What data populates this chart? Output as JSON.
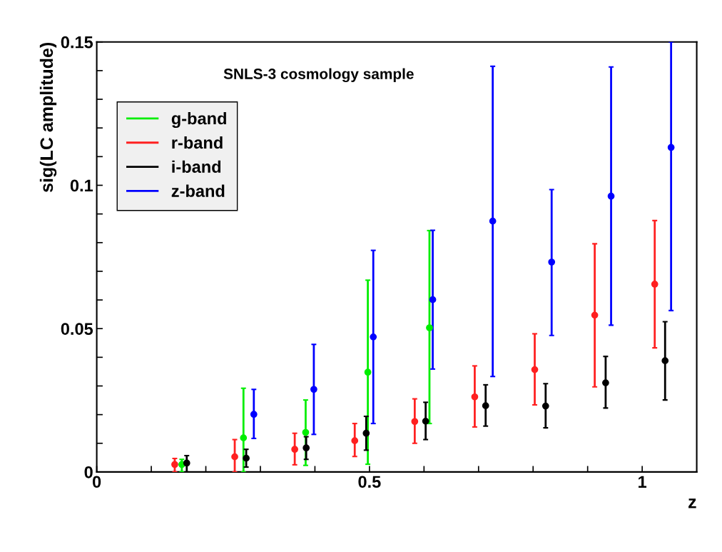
{
  "chart_data": {
    "type": "scatter",
    "title": "SNLS-3 cosmology sample",
    "xlabel": "z",
    "ylabel": "sig(LC amplitude)",
    "xlim": [
      0,
      1.1
    ],
    "ylim": [
      0,
      0.15
    ],
    "xticks": [
      0,
      {
        "value": 0.1,
        "label": null
      },
      {
        "value": 0.2,
        "label": null
      },
      {
        "value": 0.3,
        "label": null
      },
      {
        "value": 0.4,
        "label": null
      },
      0.5,
      {
        "value": 0.6,
        "label": null
      },
      {
        "value": 0.7,
        "label": null
      },
      {
        "value": 0.8,
        "label": null
      },
      {
        "value": 0.9,
        "label": null
      },
      1
    ],
    "yticks": [
      0,
      {
        "value": 0.01,
        "label": null
      },
      {
        "value": 0.02,
        "label": null
      },
      {
        "value": 0.03,
        "label": null
      },
      {
        "value": 0.04,
        "label": null
      },
      0.05,
      {
        "value": 0.06,
        "label": null
      },
      {
        "value": 0.07,
        "label": null
      },
      {
        "value": 0.08,
        "label": null
      },
      {
        "value": 0.09,
        "label": null
      },
      0.1,
      {
        "value": 0.11,
        "label": null
      },
      {
        "value": 0.12,
        "label": null
      },
      {
        "value": 0.13,
        "label": null
      },
      {
        "value": 0.14,
        "label": null
      },
      0.15
    ],
    "grid": false,
    "legend": "top left",
    "marker": "circle",
    "series": [
      {
        "name": "g-band",
        "color": "#00ee00",
        "x": [
          0.156,
          0.269,
          0.383,
          0.497,
          0.61
        ],
        "values": [
          0.0026,
          0.0119,
          0.0138,
          0.0348,
          0.0503
        ],
        "errors": [
          [
            0,
            0.0044
          ],
          [
            0,
            0.0292
          ],
          [
            0.0023,
            0.0251
          ],
          [
            0.0027,
            0.0669
          ],
          [
            0.0169,
            0.0842
          ]
        ]
      },
      {
        "name": "r-band",
        "color": "#ff2020",
        "x": [
          0.143,
          0.253,
          0.363,
          0.473,
          0.583,
          0.693,
          0.803,
          0.913,
          1.023
        ],
        "values": [
          0.0026,
          0.0053,
          0.0079,
          0.0109,
          0.0176,
          0.0262,
          0.0357,
          0.0547,
          0.0655
        ],
        "errors": [
          [
            0,
            0.0047
          ],
          [
            0,
            0.0113
          ],
          [
            0.0025,
            0.0135
          ],
          [
            0.0054,
            0.0169
          ],
          [
            0.01,
            0.0255
          ],
          [
            0.0157,
            0.037
          ],
          [
            0.0234,
            0.0482
          ],
          [
            0.0297,
            0.0796
          ],
          [
            0.0433,
            0.0877
          ]
        ]
      },
      {
        "name": "i-band",
        "color": "#000000",
        "x": [
          0.165,
          0.274,
          0.384,
          0.494,
          0.603,
          0.713,
          0.823,
          0.933,
          1.042
        ],
        "values": [
          0.0031,
          0.0048,
          0.0084,
          0.0135,
          0.0177,
          0.0231,
          0.023,
          0.0311,
          0.0388
        ],
        "errors": [
          [
            0,
            0.0057
          ],
          [
            0.0017,
            0.0079
          ],
          [
            0.0044,
            0.0123
          ],
          [
            0.0076,
            0.0194
          ],
          [
            0.0113,
            0.0243
          ],
          [
            0.016,
            0.0304
          ],
          [
            0.0154,
            0.0308
          ],
          [
            0.0223,
            0.0403
          ],
          [
            0.0251,
            0.0524
          ]
        ]
      },
      {
        "name": "z-band",
        "color": "#0000ff",
        "x": [
          0.288,
          0.398,
          0.507,
          0.616,
          0.726,
          0.834,
          0.943,
          1.053
        ],
        "values": [
          0.0201,
          0.0288,
          0.0471,
          0.0601,
          0.0875,
          0.0732,
          0.0962,
          0.1132
        ],
        "errors": [
          [
            0.0117,
            0.0288
          ],
          [
            0.0131,
            0.0445
          ],
          [
            0.0169,
            0.0773
          ],
          [
            0.0359,
            0.0843
          ],
          [
            0.0333,
            0.1415
          ],
          [
            0.0476,
            0.0985
          ],
          [
            0.0512,
            0.1413
          ],
          [
            0.0563,
            0.15
          ]
        ]
      }
    ]
  }
}
